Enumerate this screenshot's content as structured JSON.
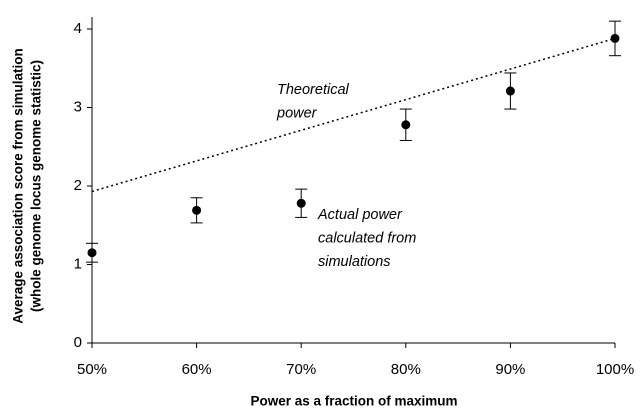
{
  "chart_data": {
    "type": "scatter",
    "y_label": [
      "Average association score from simulation",
      "(whole genome locus genome statistic)"
    ],
    "x_label": "Power as a fraction of maximum",
    "xlim": [
      50,
      100
    ],
    "xticks": [
      {
        "value": 50,
        "label": "50%"
      },
      {
        "value": 60,
        "label": "60%"
      },
      {
        "value": 70,
        "label": "70%"
      },
      {
        "value": 80,
        "label": "80%"
      },
      {
        "value": 90,
        "label": "90%"
      },
      {
        "value": 100,
        "label": "100%"
      }
    ],
    "ylim": [
      0,
      4
    ],
    "yticks": [
      0,
      1,
      2,
      3,
      4
    ],
    "series": [
      {
        "type": "scatter",
        "color": "#000000",
        "x": [
          50,
          60,
          70,
          80,
          90,
          100
        ],
        "values": [
          1.15,
          1.69,
          1.78,
          2.78,
          3.21,
          3.88
        ],
        "errors": [
          0.12,
          0.16,
          0.18,
          0.2,
          0.23,
          0.22
        ]
      },
      {
        "type": "line",
        "style": "dotted",
        "color": "#000000",
        "x": [
          50,
          100
        ],
        "values": [
          1.93,
          3.88
        ]
      }
    ],
    "annotations": [
      [
        "Theoretical",
        "power"
      ],
      [
        "Actual power",
        "calculated from",
        "simulations"
      ]
    ]
  }
}
